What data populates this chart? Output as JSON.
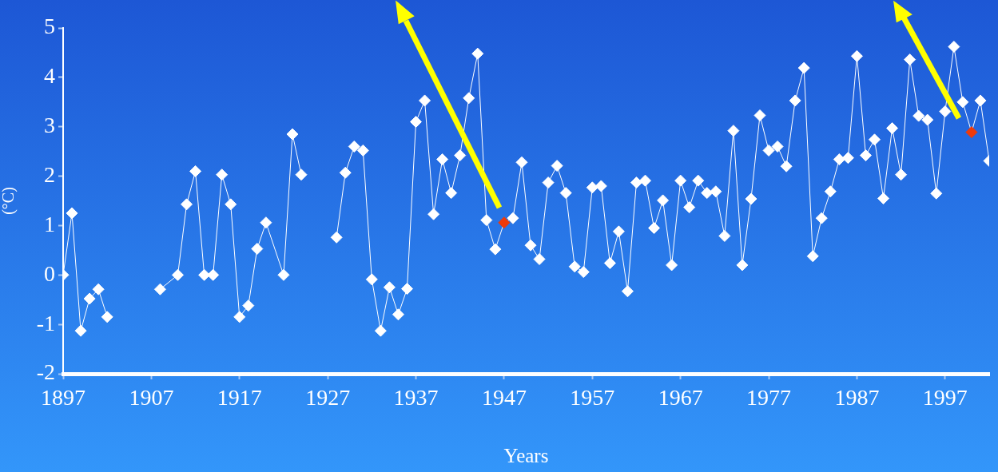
{
  "chart_data": {
    "type": "line",
    "xlabel": "Years",
    "ylabel": "(°C)",
    "x": [
      1897,
      1898,
      1899,
      1900,
      1901,
      1902,
      1903,
      1908,
      1910,
      1911,
      1912,
      1913,
      1914,
      1915,
      1916,
      1917,
      1918,
      1919,
      1920,
      1922,
      1923,
      1924,
      1925,
      1928,
      1929,
      1930,
      1931,
      1932,
      1933,
      1934,
      1935,
      1936,
      1937,
      1938,
      1939,
      1940,
      1941,
      1942,
      1943,
      1944,
      1945,
      1946,
      1947,
      1948,
      1949,
      1950,
      1951,
      1952,
      1953,
      1954,
      1955,
      1956,
      1957,
      1958,
      1959,
      1960,
      1961,
      1962,
      1963,
      1964,
      1965,
      1966,
      1967,
      1968,
      1969,
      1970,
      1971,
      1972,
      1973,
      1974,
      1975,
      1976,
      1977,
      1978,
      1979,
      1980,
      1981,
      1982,
      1983,
      1984,
      1985,
      1986,
      1987,
      1988,
      1989,
      1990,
      1991,
      1992,
      1993,
      1994,
      1995,
      1996,
      1997,
      1998,
      1999,
      2000,
      2001,
      2002
    ],
    "values": [
      0,
      1.25,
      -1.13,
      -0.48,
      -0.29,
      -0.85,
      null,
      -0.29,
      0,
      1.43,
      2.1,
      0,
      0,
      2.03,
      1.43,
      -0.85,
      -0.62,
      0.53,
      1.06,
      0,
      2.85,
      2.03,
      null,
      0.76,
      2.07,
      2.6,
      2.52,
      -0.09,
      -1.13,
      -0.25,
      -0.8,
      -0.28,
      3.1,
      3.53,
      1.23,
      2.34,
      1.66,
      2.42,
      3.58,
      4.48,
      1.11,
      0.52,
      1.06,
      1.15,
      2.28,
      0.6,
      0.32,
      1.87,
      2.21,
      1.66,
      0.17,
      0.06,
      1.77,
      1.8,
      0.24,
      0.88,
      -0.33,
      1.87,
      1.91,
      0.95,
      1.51,
      0.2,
      1.91,
      1.37,
      1.91,
      1.66,
      1.69,
      0.79,
      2.92,
      0.2,
      1.54,
      3.23,
      2.52,
      2.6,
      2.2,
      3.53,
      4.19,
      0.38,
      1.15,
      1.69,
      2.34,
      2.37,
      4.43,
      2.42,
      2.74,
      1.55,
      2.97,
      2.03,
      4.36,
      3.22,
      3.14,
      1.65,
      3.31,
      4.62,
      3.5,
      2.89,
      3.53,
      2.31
    ],
    "color": "#ffffff",
    "colors": [
      "#ffffff",
      "#ffffff",
      "#ffffff",
      "#ffffff",
      "#ffffff",
      "#ffffff",
      "#ffffff",
      "#ffffff",
      "#ffffff",
      "#ffffff",
      "#ffffff",
      "#ffffff",
      "#ffffff",
      "#ffffff",
      "#ffffff",
      "#ffffff",
      "#ffffff",
      "#ffffff",
      "#ffffff",
      "#ffffff",
      "#ffffff",
      "#ffffff",
      "#ffffff",
      "#ffffff",
      "#ffffff",
      "#ffffff",
      "#ffffff",
      "#ffffff",
      "#ffffff",
      "#ffffff",
      "#ffffff",
      "#ffffff",
      "#ffffff",
      "#ffffff",
      "#ffffff",
      "#ffffff",
      "#ffffff",
      "#ffffff",
      "#ffffff",
      "#ffffff",
      "#ffffff",
      "#ffffff",
      "#ee3a0a",
      "#ffffff",
      "#ffffff",
      "#ffffff",
      "#ffffff",
      "#ffffff",
      "#ffffff",
      "#ffffff",
      "#ffffff",
      "#ffffff",
      "#ffffff",
      "#ffffff",
      "#ffffff",
      "#ffffff",
      "#ffffff",
      "#ffffff",
      "#ffffff",
      "#ffffff",
      "#ffffff",
      "#ffffff",
      "#ffffff",
      "#ffffff",
      "#ffffff",
      "#ffffff",
      "#ffffff",
      "#ffffff",
      "#ffffff",
      "#ffffff",
      "#ffffff",
      "#ffffff",
      "#ffffff",
      "#ffffff",
      "#ffffff",
      "#ffffff",
      "#ffffff",
      "#ffffff",
      "#ffffff",
      "#ffffff",
      "#ffffff",
      "#ffffff",
      "#ffffff",
      "#ffffff",
      "#ffffff",
      "#ffffff",
      "#ffffff",
      "#ffffff",
      "#ffffff",
      "#ffffff",
      "#ffffff",
      "#ffffff",
      "#ffffff",
      "#ffffff",
      "#ffffff",
      "#ee3a0a",
      "#ffffff",
      "#ffffff"
    ],
    "marker": "diamond",
    "xlim": [
      1897,
      2002
    ],
    "xticks": [
      1897,
      1907,
      1917,
      1927,
      1937,
      1947,
      1957,
      1967,
      1977,
      1987,
      1997
    ],
    "ylim": [
      -2,
      5
    ],
    "yticks": [
      -2,
      -1,
      0,
      1,
      2,
      3,
      4,
      5
    ]
  }
}
